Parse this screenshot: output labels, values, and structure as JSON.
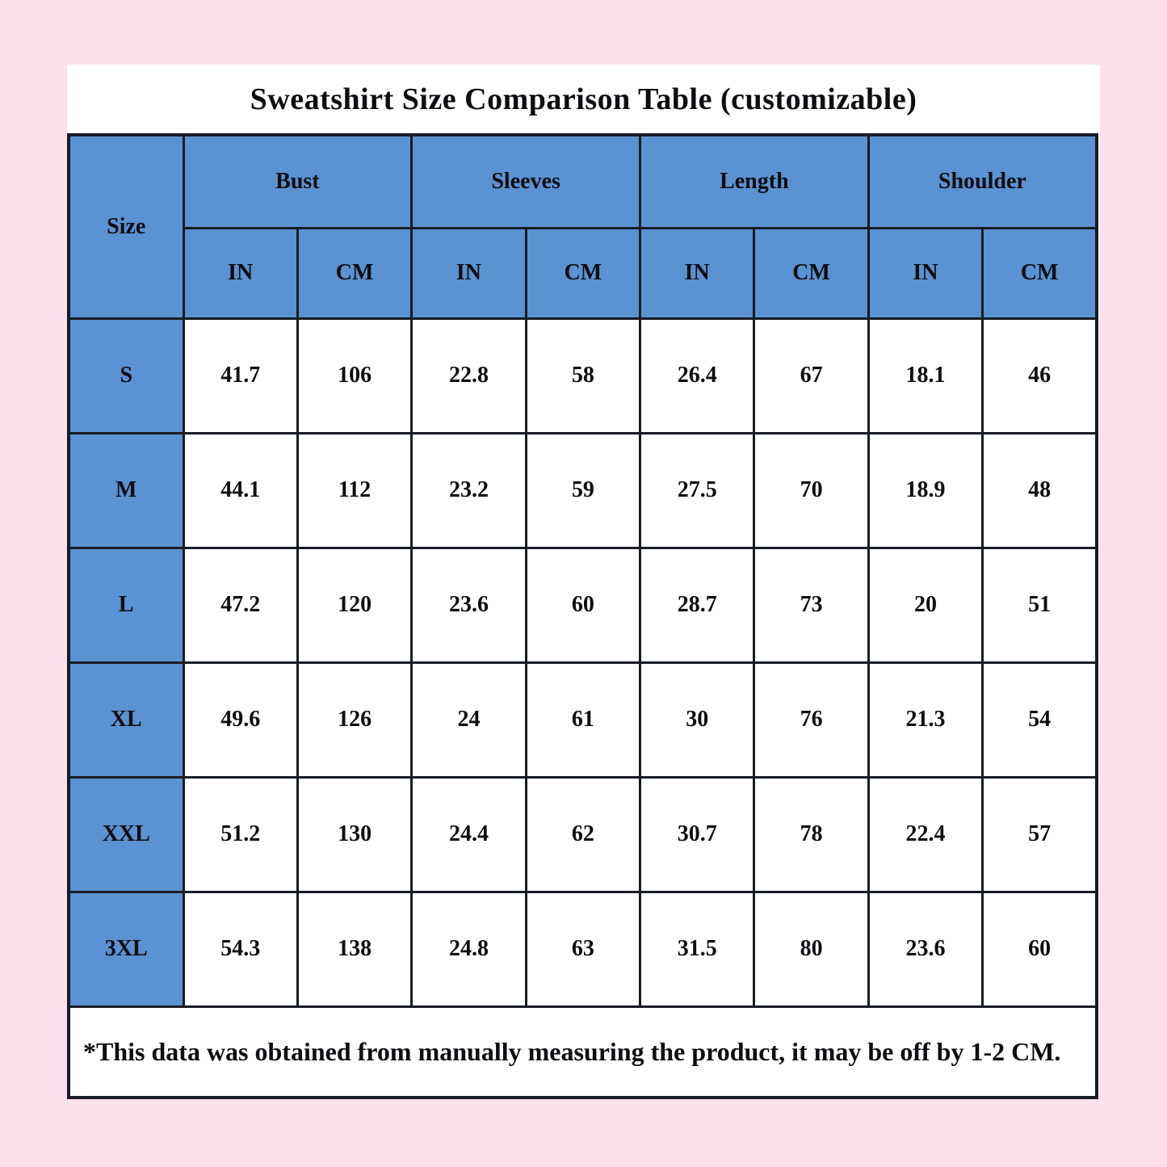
{
  "page": {
    "background_color": "#fce0ec",
    "panel_color": "#ffffff",
    "header_blue": "#5a92d2",
    "grid_line_color": "#181c24",
    "title": "Sweatshirt Size Comparison Table (customizable)"
  },
  "table": {
    "size_header": "Size",
    "groups": [
      {
        "label": "Bust",
        "units": [
          "IN",
          "CM"
        ]
      },
      {
        "label": "Sleeves",
        "units": [
          "IN",
          "CM"
        ]
      },
      {
        "label": "Length",
        "units": [
          "IN",
          "CM"
        ]
      },
      {
        "label": "Shoulder",
        "units": [
          "IN",
          "CM"
        ]
      }
    ],
    "rows": [
      {
        "size": "S",
        "values": [
          "41.7",
          "106",
          "22.8",
          "58",
          "26.4",
          "67",
          "18.1",
          "46"
        ]
      },
      {
        "size": "M",
        "values": [
          "44.1",
          "112",
          "23.2",
          "59",
          "27.5",
          "70",
          "18.9",
          "48"
        ]
      },
      {
        "size": "L",
        "values": [
          "47.2",
          "120",
          "23.6",
          "60",
          "28.7",
          "73",
          "20",
          "51"
        ]
      },
      {
        "size": "XL",
        "values": [
          "49.6",
          "126",
          "24",
          "61",
          "30",
          "76",
          "21.3",
          "54"
        ]
      },
      {
        "size": "XXL",
        "values": [
          "51.2",
          "130",
          "24.4",
          "62",
          "30.7",
          "78",
          "22.4",
          "57"
        ]
      },
      {
        "size": "3XL",
        "values": [
          "54.3",
          "138",
          "24.8",
          "63",
          "31.5",
          "80",
          "23.6",
          "60"
        ]
      }
    ],
    "footnote": "*This data was obtained from manually measuring the product, it may be off by 1-2 CM."
  }
}
